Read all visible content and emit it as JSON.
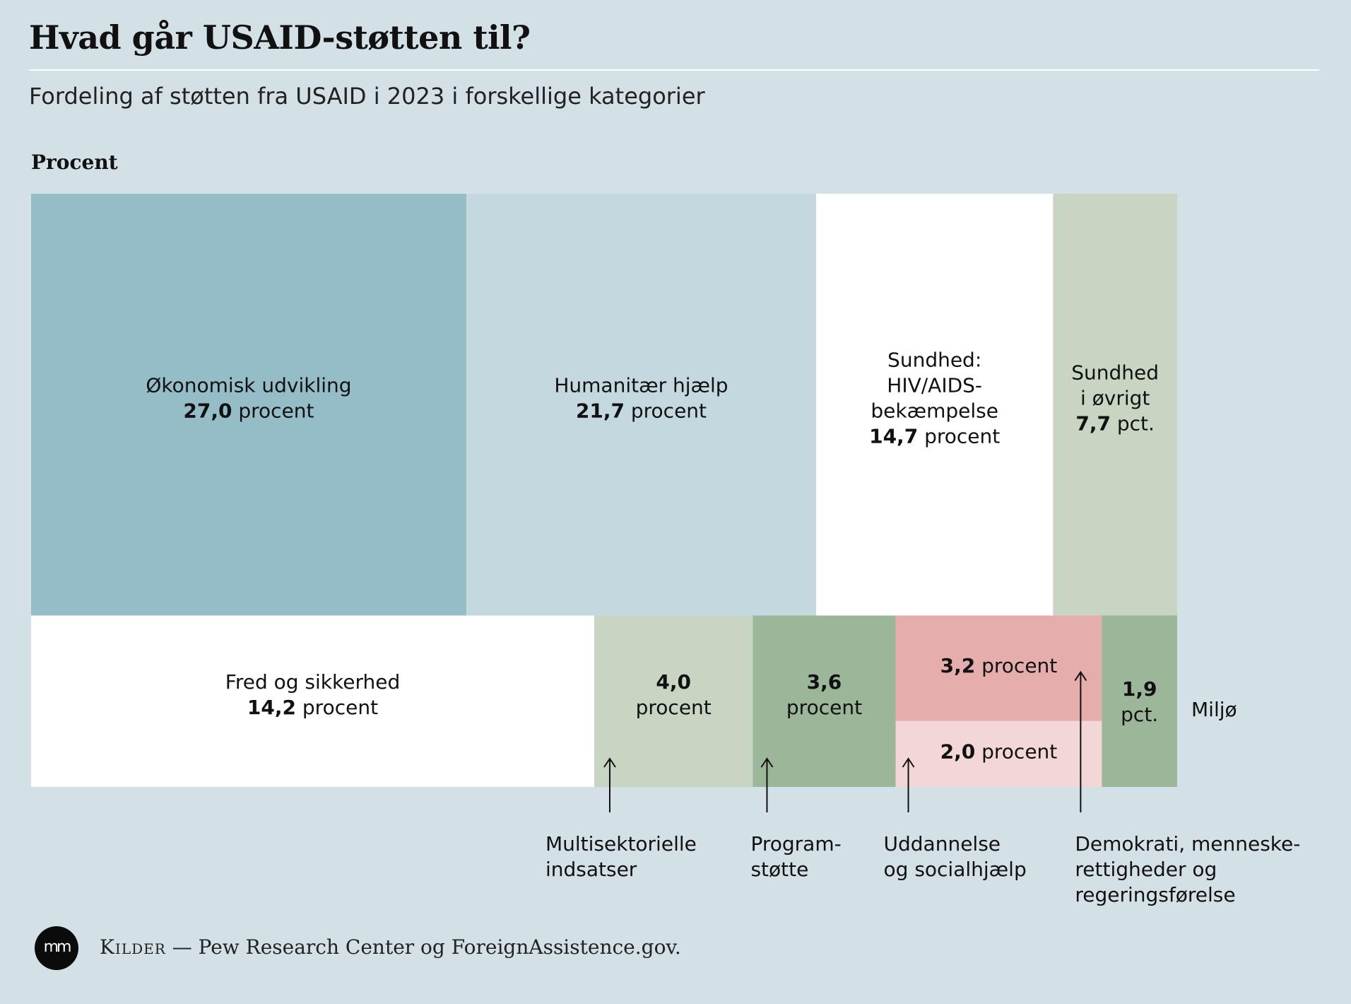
{
  "header": {
    "title": "Hvad går USAID-støtten til?",
    "subtitle": "Fordeling af støtten fra USAID i 2023 i forskellige kategorier",
    "unit_label": "Procent"
  },
  "chart_data": {
    "type": "treemap",
    "unit": "procent",
    "items": [
      {
        "name": "Økonomisk udvikling",
        "value": 27.0,
        "value_label": "27,0",
        "unit_text": "procent",
        "color": "#95bdc7"
      },
      {
        "name": "Humanitær hjælp",
        "value": 21.7,
        "value_label": "21,7",
        "unit_text": "procent",
        "color": "#c3d8df"
      },
      {
        "name": "Sundhed: HIV/AIDS-bekæmpelse",
        "value": 14.7,
        "value_label": "14,7",
        "unit_text": "procent",
        "color": "#ffffff"
      },
      {
        "name": "Sundhed i øvrigt",
        "value": 7.7,
        "value_label": "7,7",
        "unit_text": "pct.",
        "color": "#c8d5c3"
      },
      {
        "name": "Fred og sikkerhed",
        "value": 14.2,
        "value_label": "14,2",
        "unit_text": "procent",
        "color": "#ffffff"
      },
      {
        "name": "Multisektorielle indsatser",
        "value": 4.0,
        "value_label": "4,0",
        "unit_text": "procent",
        "color": "#c8d5c3"
      },
      {
        "name": "Programstøtte",
        "value": 3.6,
        "value_label": "3,6",
        "unit_text": "procent",
        "color": "#9bb698"
      },
      {
        "name": "Demokrati, menneskerettigheder og regeringsførelse",
        "value": 3.2,
        "value_label": "3,2",
        "unit_text": "procent",
        "color": "#e5adac"
      },
      {
        "name": "Uddannelse og socialhjælp",
        "value": 2.0,
        "value_label": "2,0",
        "unit_text": "procent",
        "color": "#f3d6d6"
      },
      {
        "name": "Miljø",
        "value": 1.9,
        "value_label": "1,9",
        "unit_text": "pct.",
        "color": "#9bb698"
      }
    ],
    "in_box_labels": {
      "okonomisk": [
        "Økonomisk udvikling"
      ],
      "humanitaer": [
        "Humanitær hjælp"
      ],
      "hiv": [
        "Sundhed:",
        "HIV/AIDS-",
        "bekæmpelse"
      ],
      "sundhed": [
        "Sundhed",
        "i øvrigt"
      ],
      "fred": [
        "Fred og sikkerhed"
      ]
    },
    "callouts": {
      "multi": [
        "Multisektorielle",
        "indsatser"
      ],
      "program": [
        "Program-",
        "støtte"
      ],
      "uddannelse": [
        "Uddannelse",
        "og socialhjælp"
      ],
      "demokrati": [
        "Demokrati, menneske-",
        "rettigheder og",
        "regeringsførelse"
      ],
      "miljo": [
        "Miljø"
      ]
    }
  },
  "footer": {
    "logo_text": "mm",
    "source_label": "Kilder",
    "source_dash": "—",
    "source_text": "Pew Research Center og ForeignAssistence.gov."
  }
}
